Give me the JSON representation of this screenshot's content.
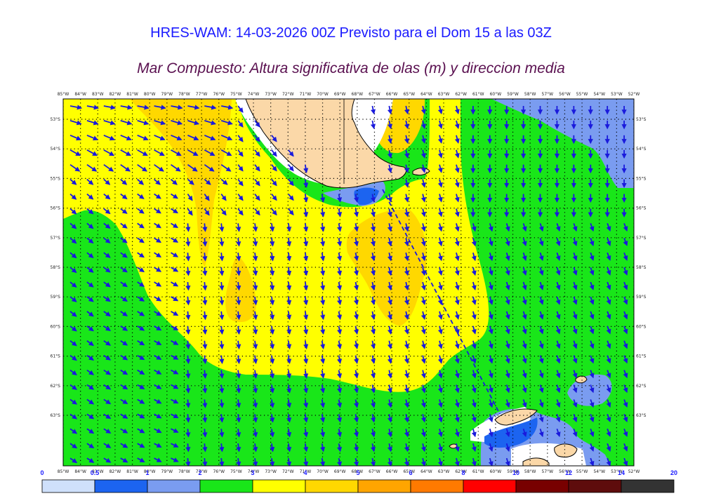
{
  "header": {
    "title": "HRES-WAM: 14-03-2026 00Z Previsto para el Dom 15 a las 03Z",
    "subtitle": "Mar Compuesto: Altura significativa de olas (m) y direccion media"
  },
  "map": {
    "lon_labels": [
      "85°W",
      "84°W",
      "83°W",
      "82°W",
      "81°W",
      "80°W",
      "79°W",
      "78°W",
      "77°W",
      "76°W",
      "75°W",
      "74°W",
      "73°W",
      "72°W",
      "71°W",
      "70°W",
      "69°W",
      "68°W",
      "67°W",
      "66°W",
      "65°W",
      "64°W",
      "63°W",
      "62°W",
      "61°W",
      "60°W",
      "59°W",
      "58°W",
      "57°W",
      "56°W",
      "55°W",
      "54°W",
      "53°W",
      "52°W"
    ],
    "lat_labels": [
      "53°S",
      "54°S",
      "55°S",
      "56°S",
      "57°S",
      "58°S",
      "59°S",
      "60°S",
      "61°S",
      "62°S",
      "63°S"
    ],
    "land_color": "#fbd8a8",
    "arrow_color": "#1a1adc",
    "grid_color": "#000000"
  },
  "colorbar": {
    "ticks": [
      "0",
      "0.5",
      "1",
      "2",
      "3",
      "4",
      "5",
      "6",
      "8",
      "10",
      "12",
      "14",
      "20"
    ],
    "colors": [
      "#cfe0fb",
      "#1c64f0",
      "#7a9cf0",
      "#19e619",
      "#ffff00",
      "#ffd800",
      "#ffa500",
      "#ff7a00",
      "#ff0000",
      "#780000",
      "#5e0c0c",
      "#333333"
    ]
  }
}
